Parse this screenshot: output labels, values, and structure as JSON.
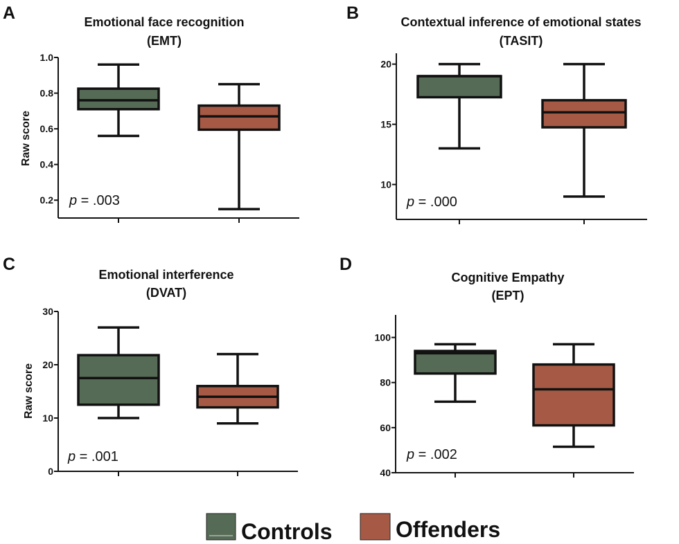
{
  "colors": {
    "Controls": "#566b56",
    "Offenders": "#a65a45",
    "stroke": "#111111"
  },
  "legend": {
    "items": [
      "Controls",
      "Offenders"
    ],
    "placement": "bottom"
  },
  "chart_data": [
    {
      "type": "box",
      "panel": "A",
      "title": [
        "Emotional face recognition",
        "(EMT)"
      ],
      "ylabel": "Raw score",
      "ylim": [
        0.1,
        1.0
      ],
      "yticks": [
        "0.2",
        "0.4",
        "0.6",
        "0.8",
        "1.0"
      ],
      "annotation": {
        "p_label": "p",
        "p_text": " = .003"
      },
      "series": [
        {
          "name": "Controls",
          "min": 0.56,
          "q1": 0.71,
          "median": 0.76,
          "q3": 0.825,
          "max": 0.96
        },
        {
          "name": "Offenders",
          "min": 0.15,
          "q1": 0.595,
          "median": 0.67,
          "q3": 0.73,
          "max": 0.85
        }
      ]
    },
    {
      "type": "box",
      "panel": "B",
      "title": [
        "Contextual inference of emotional states",
        "(TASIT)"
      ],
      "ylabel": "",
      "ylim": [
        7.1,
        20.9
      ],
      "yticks": [
        "10",
        "15",
        "20"
      ],
      "annotation": {
        "p_label": "p",
        "p_text": " = .000"
      },
      "series": [
        {
          "name": "Controls",
          "min": 13,
          "q1": 17.25,
          "median": 19,
          "q3": 19,
          "max": 20
        },
        {
          "name": "Offenders",
          "min": 9,
          "q1": 14.75,
          "median": 16,
          "q3": 17,
          "max": 20
        }
      ]
    },
    {
      "type": "box",
      "panel": "C",
      "title": [
        "Emotional interference",
        "(DVAT)"
      ],
      "ylabel": "Raw score",
      "ylim": [
        0,
        30
      ],
      "yticks": [
        "0",
        "10",
        "20",
        "30"
      ],
      "annotation": {
        "p_label": "p",
        "p_text": " = .001"
      },
      "series": [
        {
          "name": "Controls",
          "min": 10,
          "q1": 12.5,
          "median": 17.5,
          "q3": 21.8,
          "max": 27
        },
        {
          "name": "Offenders",
          "min": 9,
          "q1": 12,
          "median": 14,
          "q3": 16,
          "max": 22
        }
      ]
    },
    {
      "type": "box",
      "panel": "D",
      "title": [
        "Cognitive Empathy",
        "(EPT)"
      ],
      "ylabel": "",
      "ylim": [
        40,
        110
      ],
      "yticks": [
        "40",
        "60",
        "80",
        "100"
      ],
      "annotation": {
        "p_label": "p",
        "p_text": " = .002"
      },
      "series": [
        {
          "name": "Controls",
          "min": 71.5,
          "q1": 84,
          "median": 93,
          "q3": 94,
          "max": 97
        },
        {
          "name": "Offenders",
          "min": 51.5,
          "q1": 61,
          "median": 77,
          "q3": 88,
          "max": 97
        }
      ]
    }
  ]
}
